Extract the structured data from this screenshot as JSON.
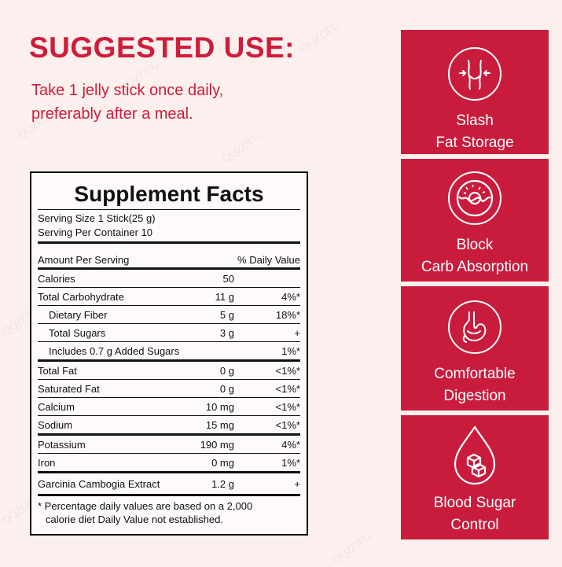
{
  "watermark": "QQZOFG",
  "suggested_use": {
    "title": "SUGGESTED USE:",
    "line1": "Take 1 jelly stick once daily,",
    "line2": "preferably after a meal."
  },
  "facts": {
    "title": "Supplement Facts",
    "serving_size": "Serving Size 1 Stick(25 g)",
    "serving_per_container": "Serving Per Container 10",
    "amount_per_serving": "Amount Per Serving",
    "daily_value_header": "% Daily Value",
    "rows": [
      {
        "name": "Calories",
        "amount": "50",
        "dv": ""
      },
      {
        "name": "Total Carbohydrate",
        "amount": "11 g",
        "dv": "4%*"
      },
      {
        "name": "Dietary Fiber",
        "amount": "5 g",
        "dv": "18%*"
      },
      {
        "name": "Total Sugars",
        "amount": "3 g",
        "dv": "+"
      },
      {
        "name": "Includes 0.7 g Added Sugars",
        "amount": "",
        "dv": "1%*"
      },
      {
        "name": "Total Fat",
        "amount": "0 g",
        "dv": "<1%*"
      },
      {
        "name": "Saturated Fat",
        "amount": "0 g",
        "dv": "<1%*"
      },
      {
        "name": "Calcium",
        "amount": "10 mg",
        "dv": "<1%*"
      },
      {
        "name": "Sodium",
        "amount": "15 mg",
        "dv": "<1%*"
      },
      {
        "name": "Potassium",
        "amount": "190 mg",
        "dv": "4%*"
      },
      {
        "name": "Iron",
        "amount": "0 mg",
        "dv": "1%*"
      },
      {
        "name": "Garcinia Cambogia Extract",
        "amount": "1.2 g",
        "dv": "+"
      }
    ],
    "footnote_line1": "* Percentage daily values are based on a 2,000",
    "footnote_line2": "calorie diet Daily Value not established."
  },
  "benefits": [
    {
      "icon": "waist-icon",
      "line1": "Slash",
      "line2": "Fat Storage"
    },
    {
      "icon": "donut-icon",
      "line1": "Block",
      "line2": "Carb Absorption"
    },
    {
      "icon": "stomach-icon",
      "line1": "Comfortable",
      "line2": "Digestion"
    },
    {
      "icon": "blood-drop-sugar-icon",
      "line1": "Blood Sugar",
      "line2": "Control"
    }
  ],
  "colors": {
    "accent": "#c91c3d",
    "heading": "#d01c3a",
    "background": "#fbf0ee"
  }
}
